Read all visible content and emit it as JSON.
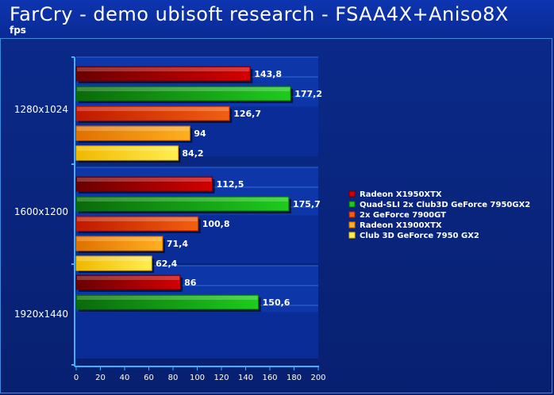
{
  "header": {
    "title": "FarCry - demo ubisoft research - FSAA4X+Aniso8X",
    "subtitle": "fps"
  },
  "chart_data": {
    "type": "bar",
    "orientation": "horizontal",
    "categories": [
      "1280x1024",
      "1600x1200",
      "1920x1440"
    ],
    "series": [
      {
        "name": "Radeon X1950XTX",
        "values": [
          143.8,
          112.5,
          86
        ],
        "value_labels": [
          "143,8",
          "112,5",
          "86"
        ],
        "color": "#d40000",
        "dark": "#6a0000"
      },
      {
        "name": "Quad-SLI 2x Club3D GeForce 7950GX2",
        "values": [
          177.2,
          175.7,
          150.6
        ],
        "value_labels": [
          "177,2",
          "175,7",
          "150,6"
        ],
        "color": "#1ecc1e",
        "dark": "#0a6a0a"
      },
      {
        "name": "2x GeForce 7900GT",
        "values": [
          126.7,
          100.8,
          null
        ],
        "value_labels": [
          "126,7",
          "100,8",
          ""
        ],
        "color": "#f06010",
        "dark": "#c01800"
      },
      {
        "name": "Radeon X1900XTX",
        "values": [
          94,
          71.4,
          null
        ],
        "value_labels": [
          "94",
          "71,4",
          ""
        ],
        "color": "#ffb020",
        "dark": "#e07000"
      },
      {
        "name": "Club 3D GeForce 7950 GX2",
        "values": [
          84.2,
          62.4,
          null
        ],
        "value_labels": [
          "84,2",
          "62,4",
          ""
        ],
        "color": "#ffee50",
        "dark": "#f0b800"
      }
    ],
    "xlim": [
      0,
      200
    ],
    "xticks": [
      "0",
      "20",
      "40",
      "60",
      "80",
      "100",
      "120",
      "140",
      "160",
      "180",
      "200"
    ],
    "grid": false,
    "legend_position": "right"
  }
}
